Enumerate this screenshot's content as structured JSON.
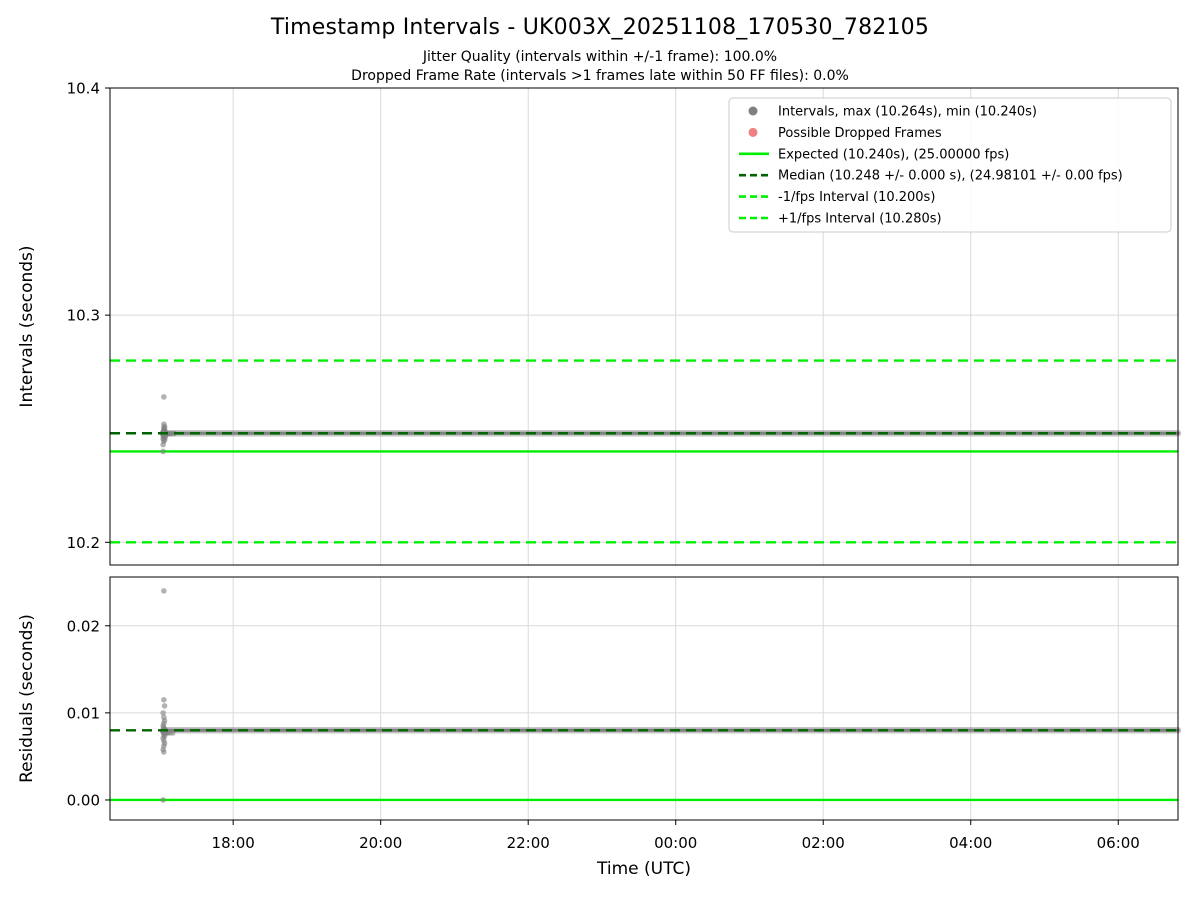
{
  "header": {
    "title": "Timestamp Intervals - UK003X_20251108_170530_782105",
    "subtitle_jitter": "Jitter Quality (intervals within +/-1 frame): 100.0%",
    "subtitle_dropped": "Dropped Frame Rate (intervals >1 frames late within 50 FF files): 0.0%"
  },
  "stats": {
    "max_interval_s": 10.264,
    "min_interval_s": 10.24,
    "expected_interval_s": 10.24,
    "expected_fps": "25.00000",
    "median_interval_s": 10.248,
    "median_fps": "24.98101",
    "minus_one_fps_interval_s": 10.2,
    "plus_one_fps_interval_s": 10.28,
    "jitter_quality_pct": "100.0",
    "dropped_frame_rate_pct": "0.0"
  },
  "colors": {
    "expected": "#00ee00",
    "median": "#006400",
    "scatter": "#808080",
    "dropped": "#f08080",
    "grid": "#d9d9d9",
    "spine": "#000000",
    "band": "#8c8c8c"
  },
  "chart_data": {
    "type": "scatter",
    "title": "Timestamp Intervals - UK003X_20251108_170530_782105",
    "x_axis": {
      "label": "Time (UTC)",
      "range_hours": [
        16.33,
        30.81
      ],
      "ticks_hours": [
        18,
        20,
        22,
        24,
        26,
        28,
        30
      ],
      "tick_labels": [
        "18:00",
        "20:00",
        "22:00",
        "00:00",
        "02:00",
        "04:00",
        "06:00"
      ],
      "grid": true
    },
    "panels": [
      {
        "name": "intervals",
        "ylabel": "Intervals (seconds)",
        "ylim": [
          10.19,
          10.4
        ],
        "yticks": [
          10.2,
          10.3,
          10.4
        ],
        "ytick_labels": [
          "10.2",
          "10.3",
          "10.4"
        ],
        "ref_lines": [
          {
            "name": "expected-line",
            "y": 10.24,
            "style": "solid",
            "color_key": "expected",
            "on_top": false
          },
          {
            "name": "minus-1fps-line",
            "y": 10.2,
            "style": "dashed",
            "color_key": "expected",
            "on_top": false
          },
          {
            "name": "plus-1fps-line",
            "y": 10.28,
            "style": "dashed",
            "color_key": "expected",
            "on_top": false
          },
          {
            "name": "median-line",
            "y": 10.248,
            "style": "dashed",
            "color_key": "median",
            "on_top": true
          }
        ],
        "band": {
          "y": 10.248,
          "x_start": 17.05,
          "x_end": 30.81
        },
        "points": [
          [
            17.06,
            10.264
          ],
          [
            17.05,
            10.24
          ],
          [
            17.05,
            10.243
          ],
          [
            17.06,
            10.2445
          ],
          [
            17.07,
            10.245
          ],
          [
            17.05,
            10.2455
          ],
          [
            17.06,
            10.246
          ],
          [
            17.08,
            10.2462
          ],
          [
            17.06,
            10.2465
          ],
          [
            17.07,
            10.2468
          ],
          [
            17.05,
            10.247
          ],
          [
            17.06,
            10.2472
          ],
          [
            17.08,
            10.2474
          ],
          [
            17.09,
            10.2476
          ],
          [
            17.11,
            10.2477
          ],
          [
            17.13,
            10.2478
          ],
          [
            17.16,
            10.2478
          ],
          [
            17.2,
            10.2479
          ],
          [
            17.06,
            10.248,
            4
          ],
          [
            17.07,
            10.2482,
            4
          ],
          [
            17.05,
            10.2485
          ],
          [
            17.06,
            10.2488
          ],
          [
            17.07,
            10.249
          ],
          [
            17.06,
            10.2495
          ],
          [
            17.07,
            10.25
          ],
          [
            17.06,
            10.2505
          ],
          [
            17.07,
            10.251
          ],
          [
            17.06,
            10.252
          ]
        ]
      },
      {
        "name": "residuals",
        "ylabel": "Residuals (seconds)",
        "ylim": [
          -0.0023,
          0.0256
        ],
        "yticks": [
          0.0,
          0.01,
          0.02
        ],
        "ytick_labels": [
          "0.00",
          "0.01",
          "0.02"
        ],
        "ref_lines": [
          {
            "name": "zero-expected-line",
            "y": 0.0,
            "style": "solid",
            "color_key": "expected",
            "on_top": false
          },
          {
            "name": "median-residual-line",
            "y": 0.008,
            "style": "dashed",
            "color_key": "median",
            "on_top": true
          }
        ],
        "band": {
          "y": 0.008,
          "x_start": 17.05,
          "x_end": 30.81
        },
        "points": [
          [
            17.06,
            0.024
          ],
          [
            17.05,
            0.0
          ],
          [
            17.06,
            0.0115
          ],
          [
            17.07,
            0.0108
          ],
          [
            17.05,
            0.01
          ],
          [
            17.06,
            0.0095
          ],
          [
            17.07,
            0.0091
          ],
          [
            17.06,
            0.0088
          ],
          [
            17.05,
            0.0085
          ],
          [
            17.06,
            0.0083
          ],
          [
            17.07,
            0.0081
          ],
          [
            17.08,
            0.008
          ],
          [
            17.06,
            0.0079,
            4
          ],
          [
            17.07,
            0.0078,
            4
          ],
          [
            17.09,
            0.0077
          ],
          [
            17.11,
            0.0077
          ],
          [
            17.14,
            0.0077
          ],
          [
            17.18,
            0.0077
          ],
          [
            17.06,
            0.0075
          ],
          [
            17.07,
            0.0073
          ],
          [
            17.05,
            0.0071
          ],
          [
            17.06,
            0.0068
          ],
          [
            17.07,
            0.0065
          ],
          [
            17.06,
            0.0062
          ],
          [
            17.05,
            0.0058
          ],
          [
            17.06,
            0.0055
          ]
        ]
      }
    ],
    "legend": {
      "entries": [
        {
          "marker": "dot",
          "color_key": "scatter",
          "label": "Intervals, max (10.264s), min (10.240s)"
        },
        {
          "marker": "dot",
          "color_key": "dropped",
          "label": "Possible Dropped Frames"
        },
        {
          "marker": "line",
          "dash": false,
          "color_key": "expected",
          "label": "Expected (10.240s), (25.00000 fps)"
        },
        {
          "marker": "line",
          "dash": true,
          "color_key": "median",
          "label": "Median (10.248 +/- 0.000 s), (24.98101 +/- 0.00 fps)"
        },
        {
          "marker": "line",
          "dash": true,
          "color_key": "expected",
          "label": "-1/fps Interval (10.200s)"
        },
        {
          "marker": "line",
          "dash": true,
          "color_key": "expected",
          "label": "+1/fps Interval (10.280s)"
        }
      ]
    }
  }
}
